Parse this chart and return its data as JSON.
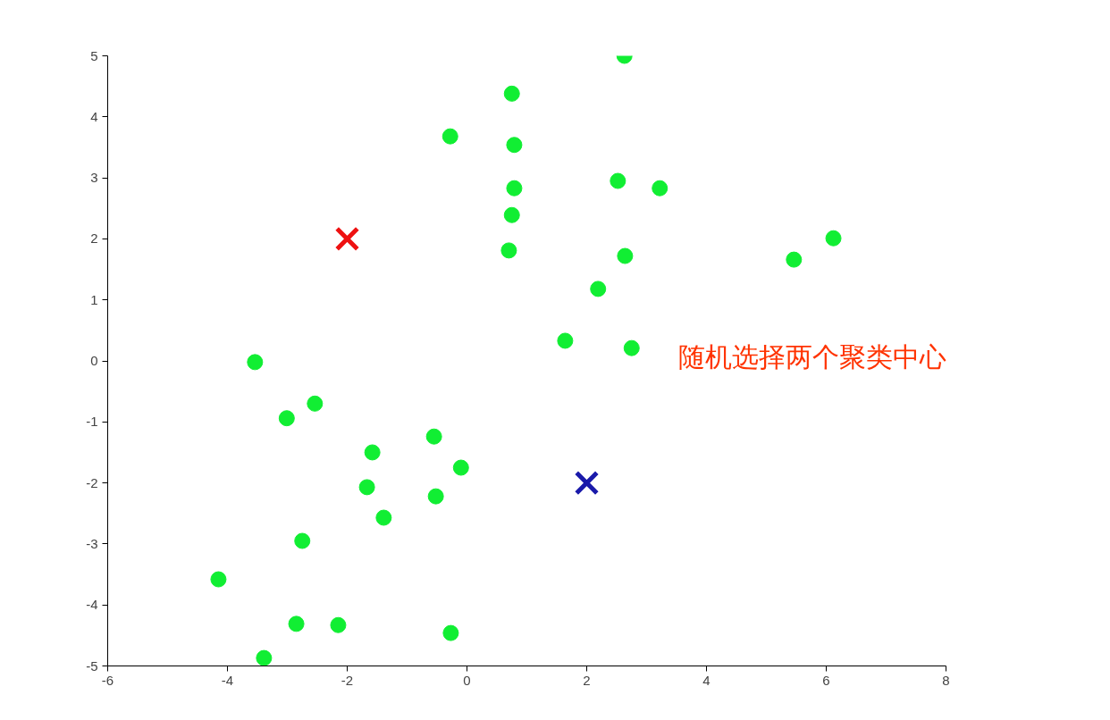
{
  "chart_data": {
    "type": "scatter",
    "annotations": [
      "随机选择两个聚类中心"
    ],
    "xlim": [
      -6,
      8
    ],
    "xticks": [
      -6,
      -4,
      -2,
      0,
      2,
      4,
      6,
      8
    ],
    "ylim": [
      -5,
      5
    ],
    "yticks": [
      -5,
      -4,
      -3,
      -2,
      -1,
      0,
      1,
      2,
      3,
      4,
      5
    ],
    "grid": false,
    "series": [
      {
        "color": "#11ee33",
        "marker": "circle",
        "x": [
          2.63,
          0.75,
          -0.28,
          0.79,
          2.52,
          0.79,
          3.22,
          0.75,
          6.12,
          0.7,
          2.64,
          5.46,
          2.19,
          1.64,
          2.75,
          -3.54,
          -2.54,
          -3.01,
          -0.55,
          -1.58,
          -0.1,
          -1.67,
          -0.52,
          -1.39,
          -2.75,
          -4.15,
          -2.85,
          -2.15,
          -0.27,
          -3.39
        ],
        "values": [
          5.0,
          4.38,
          3.68,
          3.54,
          2.95,
          2.83,
          2.83,
          2.39,
          2.01,
          1.81,
          1.72,
          1.66,
          1.18,
          0.33,
          0.21,
          -0.02,
          -0.7,
          -0.94,
          -1.24,
          -1.5,
          -1.75,
          -2.07,
          -2.22,
          -2.57,
          -2.95,
          -3.58,
          -4.31,
          -4.33,
          -4.46,
          -4.87
        ]
      },
      {
        "marker": "cross",
        "colors": [
          "#ee1111",
          "#1a1aaa"
        ],
        "x": [
          -2,
          2
        ],
        "values": [
          2,
          -2
        ]
      }
    ]
  }
}
